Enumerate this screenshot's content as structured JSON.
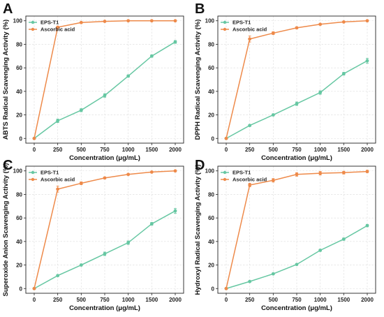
{
  "figure": {
    "colors": {
      "eps": "#66c7a2",
      "ascorbic": "#ee8a4a"
    },
    "shared_xlabel": "Concentration (μg/mL)"
  },
  "chart_data": [
    {
      "type": "line",
      "panel_letter": "A",
      "xlabel": "Concentration (μg/mL)",
      "ylabel": "ABTS Radical Scavenging Activity (%)",
      "categories": [
        "0",
        "250",
        "500",
        "750",
        "1000",
        "1500",
        "2000"
      ],
      "yticks": [
        "0",
        "20",
        "40",
        "60",
        "80",
        "100"
      ],
      "ylim": [
        -4,
        104
      ],
      "grid": true,
      "legend_position": "top-left",
      "series": [
        {
          "name": "EPS-T1",
          "color": "#66c7a2",
          "values": [
            0,
            15,
            24,
            36.5,
            53,
            70,
            82
          ],
          "errors": [
            0,
            1.5,
            1.3,
            1.5,
            1.0,
            1.0,
            1.2
          ]
        },
        {
          "name": "Ascorbic acid",
          "color": "#ee8a4a",
          "values": [
            0,
            94.5,
            98.5,
            99.5,
            100,
            100,
            100
          ],
          "errors": [
            0,
            0.8,
            0.5,
            0.4,
            0.3,
            0.3,
            0.3
          ]
        }
      ]
    },
    {
      "type": "line",
      "panel_letter": "B",
      "xlabel": "Concentration (μg/mL)",
      "ylabel": "DPPH Radical Scavenging Activity (%)",
      "categories": [
        "0",
        "250",
        "500",
        "750",
        "1000",
        "1500",
        "2000"
      ],
      "yticks": [
        "0",
        "20",
        "40",
        "60",
        "80",
        "100"
      ],
      "ylim": [
        -4,
        104
      ],
      "grid": true,
      "legend_position": "top-left",
      "series": [
        {
          "name": "EPS-T1",
          "color": "#66c7a2",
          "values": [
            0,
            11,
            20,
            29.5,
            39,
            55,
            66
          ],
          "errors": [
            0,
            0.8,
            0.8,
            1.5,
            1.5,
            1.2,
            2.0
          ]
        },
        {
          "name": "Ascorbic acid",
          "color": "#ee8a4a",
          "values": [
            0,
            84.5,
            89.5,
            94,
            97,
            99,
            100
          ],
          "errors": [
            0,
            2.5,
            1.2,
            0.8,
            0.6,
            0.5,
            0.5
          ]
        }
      ]
    },
    {
      "type": "line",
      "panel_letter": "C",
      "xlabel": "Concentration (μg/mL)",
      "ylabel": "Superoxide Anion Scavenging Activity (%)",
      "categories": [
        "0",
        "250",
        "500",
        "750",
        "1000",
        "1500",
        "2000"
      ],
      "yticks": [
        "0",
        "20",
        "40",
        "60",
        "80",
        "100"
      ],
      "ylim": [
        -4,
        104
      ],
      "grid": true,
      "legend_position": "top-left",
      "series": [
        {
          "name": "EPS-T1",
          "color": "#66c7a2",
          "values": [
            0,
            11,
            20,
            29.5,
            39,
            55,
            66
          ],
          "errors": [
            0,
            0.8,
            0.8,
            1.5,
            1.5,
            1.2,
            2.0
          ]
        },
        {
          "name": "Ascorbic acid",
          "color": "#ee8a4a",
          "values": [
            0,
            84.5,
            89.5,
            94,
            97,
            99,
            100
          ],
          "errors": [
            0,
            2.5,
            1.2,
            0.8,
            0.6,
            0.5,
            0.5
          ]
        }
      ]
    },
    {
      "type": "line",
      "panel_letter": "D",
      "xlabel": "Concentration (μg/mL)",
      "ylabel": "Hydroxyl Radical Scavenging Activity (%)",
      "categories": [
        "0",
        "250",
        "500",
        "750",
        "1000",
        "1500",
        "2000"
      ],
      "yticks": [
        "0",
        "20",
        "40",
        "60",
        "80",
        "100"
      ],
      "ylim": [
        -4,
        104
      ],
      "grid": true,
      "legend_position": "top-left",
      "series": [
        {
          "name": "EPS-T1",
          "color": "#66c7a2",
          "values": [
            0,
            6,
            12.5,
            20.5,
            32.5,
            42,
            53.5
          ],
          "errors": [
            0,
            0.6,
            0.6,
            0.7,
            0.8,
            1.0,
            1.0
          ]
        },
        {
          "name": "Ascorbic acid",
          "color": "#ee8a4a",
          "values": [
            0,
            88,
            92,
            97,
            98,
            98.5,
            99.5
          ],
          "errors": [
            0,
            1.5,
            1.5,
            1.5,
            1.5,
            1.2,
            1.0
          ]
        }
      ]
    }
  ]
}
